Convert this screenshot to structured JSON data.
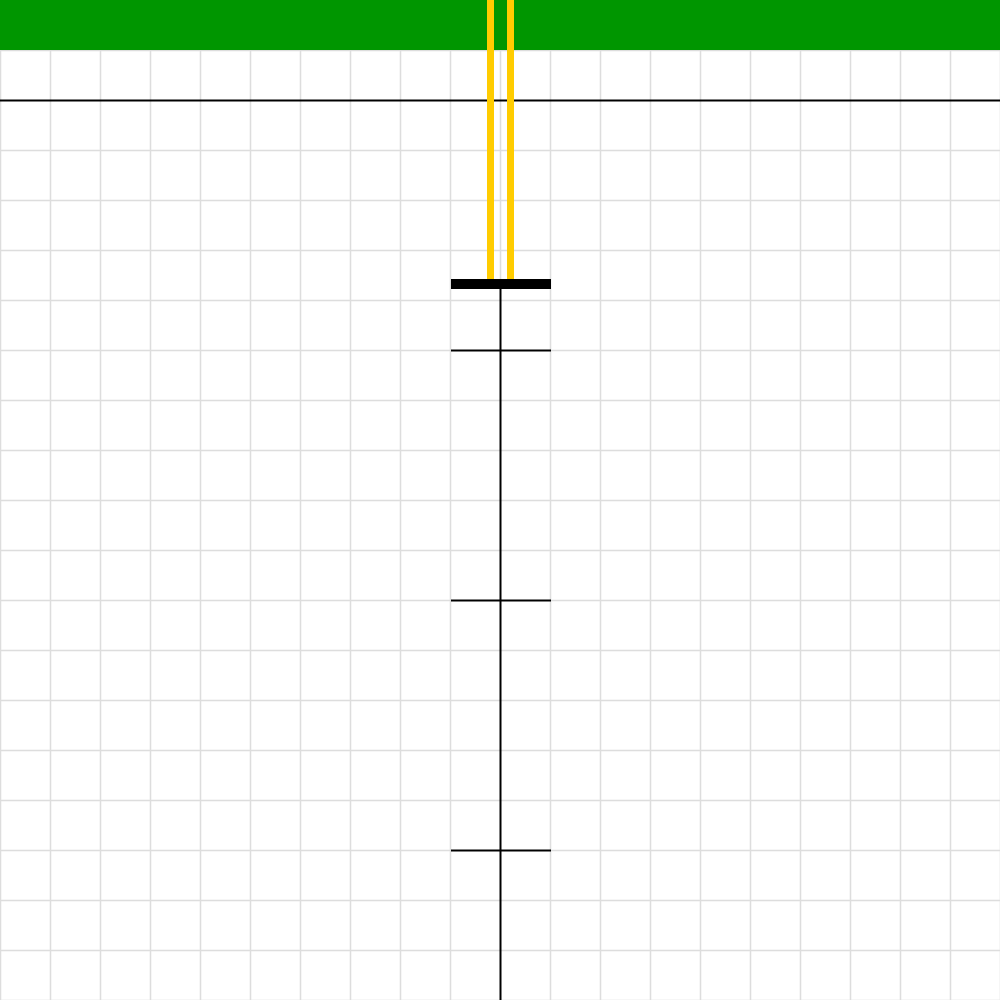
{
  "scene": {
    "kind": "top-down grid board",
    "grid": {
      "columns": 20,
      "rows": 20,
      "line_color": "#dddddd",
      "background_color": "#ffffff"
    },
    "goal_zone": {
      "color": "#009600"
    },
    "boundary_line": {
      "color": "#000000"
    },
    "track": {
      "color": "#000000",
      "stop_bar_color": "#000000",
      "cross_tick_count": 3
    },
    "lane_markers": {
      "color": "#ffcc00",
      "count": 2
    }
  }
}
